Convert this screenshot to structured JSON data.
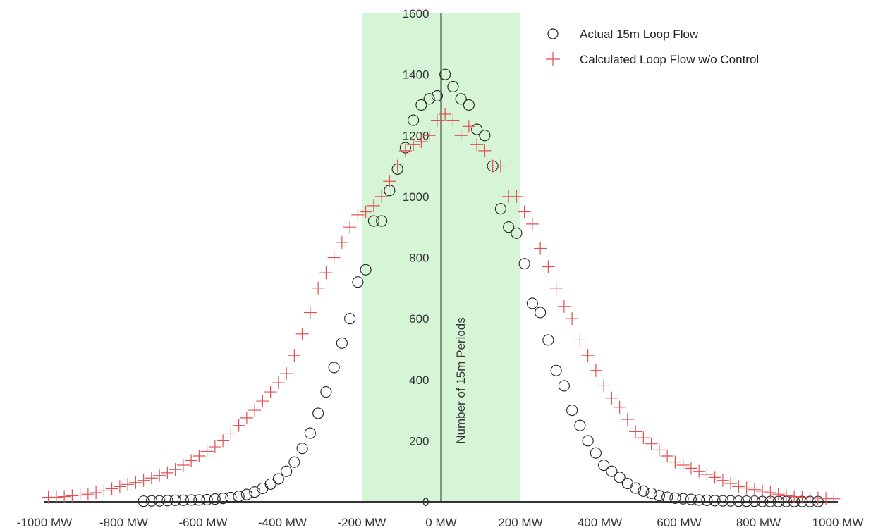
{
  "chart_data": {
    "type": "scatter",
    "title": "",
    "xlabel": "",
    "ylabel": "Number of 15m Periods",
    "xlim": [
      -1000,
      1000
    ],
    "ylim": [
      0,
      1600
    ],
    "x_ticks": [
      -1000,
      -800,
      -600,
      -400,
      -200,
      0,
      200,
      400,
      600,
      800,
      1000
    ],
    "x_tick_labels": [
      "-1000 MW",
      "-800 MW",
      "-600 MW",
      "-400 MW",
      "-200 MW",
      "0 MW",
      "200 MW",
      "400 MW",
      "600 MW",
      "800 MW",
      "1000 MW"
    ],
    "y_ticks": [
      0,
      200,
      400,
      600,
      800,
      1000,
      1200,
      1400,
      1600
    ],
    "y_tick_labels": [
      "0",
      "200",
      "400",
      "600",
      "800",
      "1000",
      "1200",
      "1400",
      "1600"
    ],
    "shaded_band": {
      "x_range": [
        -200,
        200
      ],
      "color": "#d6f5d6"
    },
    "grid": false,
    "legend_position": "top-right",
    "series": [
      {
        "name": "Actual 15m Loop Flow",
        "marker": "circle",
        "color": "#222222",
        "x": [
          -750,
          -730,
          -710,
          -690,
          -670,
          -650,
          -630,
          -610,
          -590,
          -570,
          -550,
          -530,
          -510,
          -490,
          -470,
          -450,
          -430,
          -410,
          -390,
          -370,
          -350,
          -330,
          -310,
          -290,
          -270,
          -250,
          -230,
          -210,
          -190,
          -170,
          -150,
          -130,
          -110,
          -90,
          -70,
          -50,
          -30,
          -10,
          10,
          30,
          50,
          70,
          90,
          110,
          130,
          150,
          170,
          190,
          210,
          230,
          250,
          270,
          290,
          310,
          330,
          350,
          370,
          390,
          410,
          430,
          450,
          470,
          490,
          510,
          530,
          550,
          570,
          590,
          610,
          630,
          650,
          670,
          690,
          710,
          730,
          750,
          770,
          790,
          810,
          830,
          850,
          870,
          890,
          910,
          930,
          950
        ],
        "y": [
          2,
          3,
          3,
          4,
          5,
          5,
          6,
          6,
          7,
          9,
          11,
          14,
          18,
          24,
          32,
          44,
          58,
          75,
          100,
          130,
          175,
          225,
          290,
          360,
          440,
          520,
          600,
          720,
          760,
          920,
          920,
          1020,
          1090,
          1160,
          1250,
          1300,
          1320,
          1330,
          1400,
          1360,
          1320,
          1300,
          1220,
          1200,
          1100,
          960,
          900,
          880,
          780,
          650,
          620,
          530,
          430,
          380,
          300,
          250,
          200,
          160,
          120,
          100,
          80,
          60,
          45,
          35,
          28,
          20,
          15,
          12,
          10,
          8,
          6,
          5,
          4,
          3,
          3,
          2,
          2,
          2,
          1,
          1,
          1,
          1,
          1,
          1,
          1,
          1
        ]
      },
      {
        "name": "Calculated Loop Flow w/o Control",
        "marker": "plus",
        "color": "#e05050",
        "x": [
          -990,
          -970,
          -950,
          -930,
          -910,
          -890,
          -870,
          -850,
          -830,
          -810,
          -790,
          -770,
          -750,
          -730,
          -710,
          -690,
          -670,
          -650,
          -630,
          -610,
          -590,
          -570,
          -550,
          -530,
          -510,
          -490,
          -470,
          -450,
          -430,
          -410,
          -390,
          -370,
          -350,
          -330,
          -310,
          -290,
          -270,
          -250,
          -230,
          -210,
          -190,
          -170,
          -150,
          -130,
          -110,
          -90,
          -70,
          -50,
          -30,
          -10,
          10,
          30,
          50,
          70,
          90,
          110,
          130,
          150,
          170,
          190,
          210,
          230,
          250,
          270,
          290,
          310,
          330,
          350,
          370,
          390,
          410,
          430,
          450,
          470,
          490,
          510,
          530,
          550,
          570,
          590,
          610,
          630,
          650,
          670,
          690,
          710,
          730,
          750,
          770,
          790,
          810,
          830,
          850,
          870,
          890,
          910,
          930,
          950,
          970,
          990
        ],
        "y": [
          15,
          15,
          17,
          20,
          22,
          25,
          30,
          36,
          43,
          50,
          57,
          63,
          70,
          78,
          86,
          95,
          106,
          120,
          135,
          150,
          165,
          180,
          200,
          225,
          250,
          275,
          300,
          330,
          360,
          390,
          420,
          480,
          550,
          620,
          700,
          750,
          800,
          850,
          900,
          940,
          950,
          970,
          1000,
          1050,
          1100,
          1150,
          1170,
          1180,
          1200,
          1250,
          1270,
          1250,
          1200,
          1230,
          1170,
          1150,
          1100,
          1100,
          1000,
          1000,
          950,
          910,
          830,
          770,
          700,
          640,
          600,
          530,
          480,
          430,
          380,
          340,
          310,
          270,
          230,
          210,
          190,
          170,
          150,
          130,
          120,
          110,
          100,
          90,
          80,
          70,
          60,
          50,
          45,
          40,
          35,
          30,
          25,
          20,
          17,
          15,
          13,
          12,
          11,
          10
        ]
      }
    ]
  },
  "legend": {
    "items": [
      {
        "label": "Actual 15m Loop Flow",
        "marker": "circle"
      },
      {
        "label": "Calculated Loop Flow w/o Control",
        "marker": "plus"
      }
    ]
  },
  "colors": {
    "band": "#d6f5d6",
    "axis": "#333333",
    "circle": "#222222",
    "plus": "#e05050"
  }
}
